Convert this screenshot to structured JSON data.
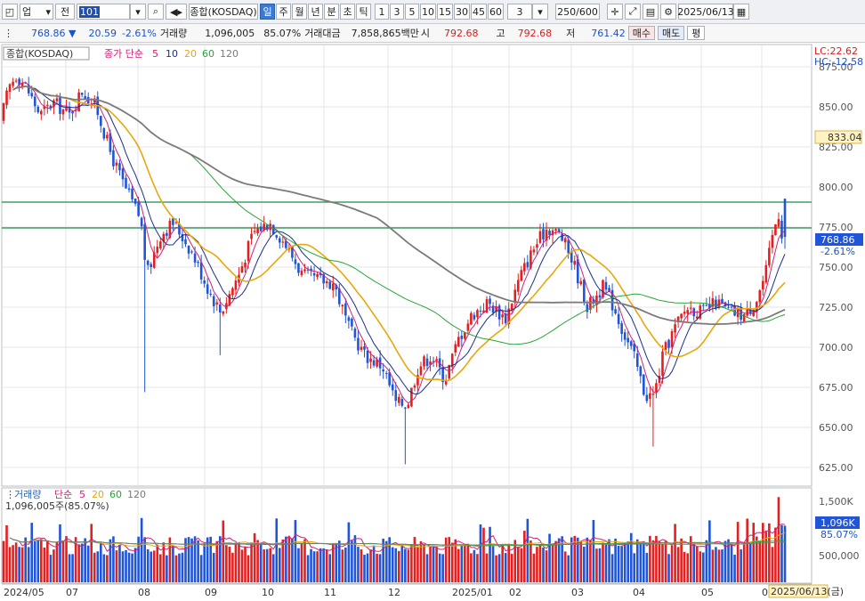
{
  "toolbar": {
    "market": "업",
    "prev_label": "전",
    "code": "101",
    "name": "종합(KOSDAQ)",
    "periods": [
      "일",
      "주",
      "월",
      "년",
      "분",
      "초",
      "틱"
    ],
    "selected_period": "일",
    "intervals": [
      "1",
      "3",
      "5",
      "10",
      "15",
      "30",
      "45",
      "60"
    ],
    "interval_value": "3",
    "count": "250/600",
    "date": "2025/06/13"
  },
  "infobar": {
    "price": "768.86 ▼",
    "change": "20.59",
    "change_pct": "-2.61%",
    "volume_label": "거래량",
    "volume": "1,096,005",
    "volume_pct": "85.07%",
    "amount_label": "거래대금",
    "amount": "7,858,865백만",
    "open_label": "시",
    "open": "792.68",
    "high_label": "고",
    "high": "792.68",
    "low_label": "저",
    "low": "761.42",
    "buy_label": "매수",
    "sell_label": "매도",
    "eval_label": "평"
  },
  "price_panel": {
    "title": "종합(KOSDAQ)",
    "ma_label": "종가 단순",
    "ma_periods": [
      "5",
      "10",
      "20",
      "60",
      "120"
    ],
    "lc": "LC:22.62",
    "hc": "HC:-12.58",
    "y_ticks": [
      "875.00",
      "850.00",
      "825.00",
      "800.00",
      "775.00",
      "750.00",
      "725.00",
      "700.00",
      "675.00",
      "650.00",
      "625.00"
    ],
    "current_tag": "768.86",
    "current_pct": "-2.61%",
    "cross_tag": "833.04"
  },
  "volume_panel": {
    "title": "거래량",
    "ma_label": "단순",
    "ma_periods": [
      "5",
      "20",
      "60",
      "120"
    ],
    "current_text": "1,096,005주(85.07%)",
    "y_ticks": [
      "1,500K",
      "500,000"
    ],
    "current_tag": "1,096K",
    "current_pct": "85.07%"
  },
  "x_axis": {
    "labels": [
      "2024/05",
      "07",
      "08",
      "09",
      "10",
      "11",
      "12",
      "2025/01",
      "02",
      "03",
      "04",
      "05",
      "06"
    ],
    "date_tag": "2025/06/13(금)"
  },
  "colors": {
    "up": "#e51f1f",
    "down": "#1f55d6",
    "ma5": "#d0207a",
    "ma10": "#1a2f8a",
    "ma20": "#e8a80c",
    "ma60": "#2aa43a",
    "ma120": "#7a7a7a"
  }
}
